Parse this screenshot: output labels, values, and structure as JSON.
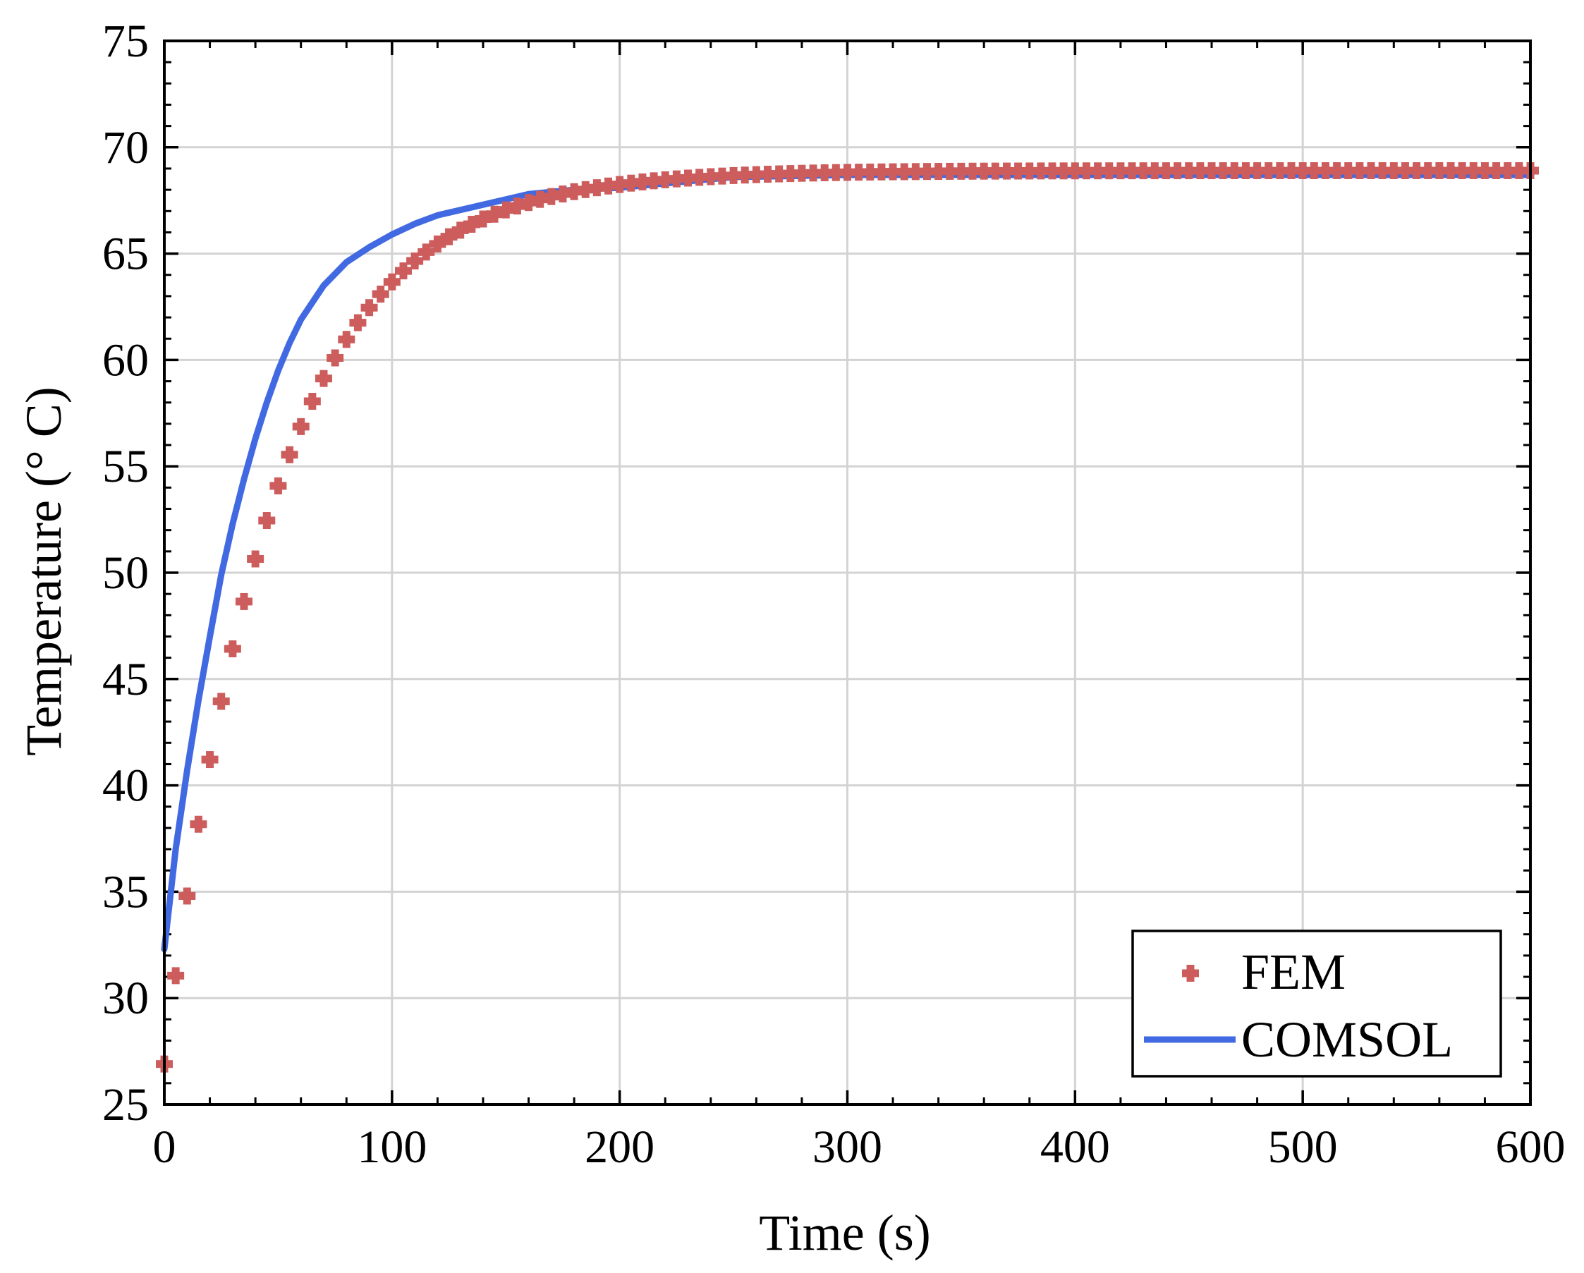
{
  "chart_data": {
    "type": "line",
    "xlabel": "Time (s)",
    "ylabel": "Temperature (° C)",
    "xlim": [
      0,
      600
    ],
    "ylim": [
      25,
      75
    ],
    "xticks": [
      0,
      100,
      200,
      300,
      400,
      500,
      600
    ],
    "yticks": [
      25,
      30,
      35,
      40,
      45,
      50,
      55,
      60,
      65,
      70,
      75
    ],
    "grid": true,
    "legend_position": "bottom-right",
    "series": [
      {
        "name": "FEM",
        "style": "markers",
        "color": "#cd5c5c",
        "model": {
          "T_start": 26.9,
          "T_end": 68.9,
          "tau_s": 48,
          "t_start": 0,
          "t_end": 600,
          "t_step": 5
        }
      },
      {
        "name": "COMSOL",
        "style": "line",
        "color": "#4169e1",
        "points": [
          [
            0,
            32.3
          ],
          [
            5,
            37.0
          ],
          [
            10,
            40.7
          ],
          [
            15,
            44.0
          ],
          [
            20,
            47.0
          ],
          [
            25,
            49.9
          ],
          [
            30,
            52.3
          ],
          [
            35,
            54.4
          ],
          [
            40,
            56.3
          ],
          [
            45,
            58.0
          ],
          [
            50,
            59.5
          ],
          [
            55,
            60.8
          ],
          [
            60,
            61.9
          ],
          [
            70,
            63.5
          ],
          [
            80,
            64.6
          ],
          [
            90,
            65.3
          ],
          [
            100,
            65.9
          ],
          [
            110,
            66.4
          ],
          [
            120,
            66.8
          ],
          [
            140,
            67.3
          ],
          [
            160,
            67.8
          ],
          [
            180,
            68.0
          ],
          [
            200,
            68.1
          ],
          [
            250,
            68.6
          ],
          [
            300,
            68.7
          ],
          [
            400,
            68.7
          ],
          [
            500,
            68.7
          ],
          [
            600,
            68.7
          ]
        ]
      }
    ]
  }
}
